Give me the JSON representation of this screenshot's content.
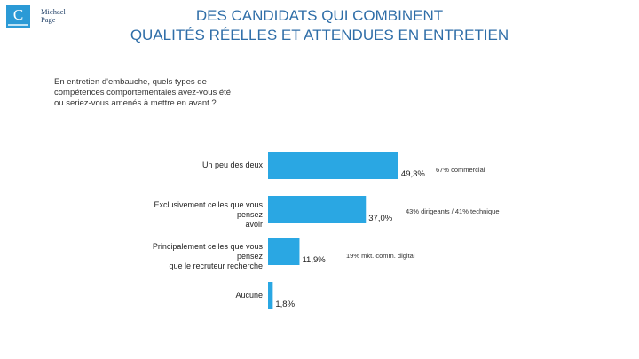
{
  "logo": {
    "letter": "C",
    "brand_line1": "Michael",
    "brand_line2": "Page"
  },
  "header": {
    "title_line1": "DES CANDIDATS QUI COMBINENT",
    "title_line2": "QUALITÉS RÉELLES ET ATTENDUES EN ENTRETIEN"
  },
  "question": "En entretien d'embauche, quels types de compétences comportementales avez-vous été ou seriez-vous amenés à mettre en avant ?",
  "colors": {
    "bar": "#2aa7e3",
    "title": "#2f6ea8",
    "logo": "#2b9ad6"
  },
  "chart_data": {
    "type": "bar",
    "orientation": "horizontal",
    "title": "",
    "categories": [
      [
        "Un peu des deux"
      ],
      [
        "Exclusivement celles que vous pensez",
        "avoir"
      ],
      [
        "Principalement celles que vous pensez",
        "que le recruteur recherche"
      ],
      [
        "Aucune"
      ]
    ],
    "values": [
      49.3,
      37.0,
      11.9,
      1.8
    ],
    "value_labels": [
      "49,3%",
      "37,0%",
      "11,9%",
      "1,8%"
    ],
    "annotations": [
      "67% commercial",
      "43% dirigeants / 41% technique",
      "19% mkt. comm. digital",
      ""
    ],
    "xlim": [
      0,
      100
    ],
    "grid": false,
    "legend": "none"
  }
}
